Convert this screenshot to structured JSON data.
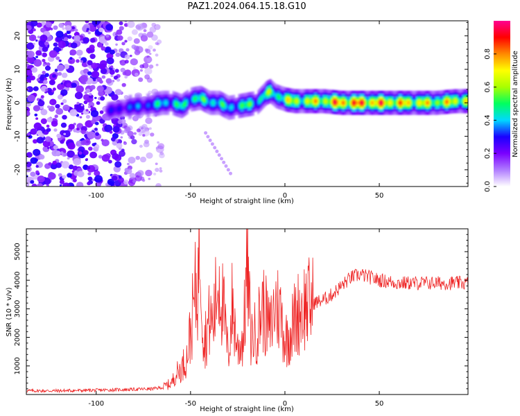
{
  "title": "PAZ1.2024.064.15.18.G10",
  "chart_data": [
    {
      "type": "heatmap",
      "xlabel": "Height of straight line (km)",
      "ylabel": "Frequency (Hz)",
      "xlim": [
        -137,
        97
      ],
      "ylim": [
        -25,
        24.5
      ],
      "xticks": [
        -100,
        -50,
        0,
        50
      ],
      "yticks": [
        -20,
        -10,
        0,
        10,
        20
      ],
      "colorbar": {
        "label": "Normalized spectral amplitude",
        "range": [
          0,
          1
        ],
        "ticks": [
          "0.0",
          "0.2",
          "0.4",
          "0.6",
          "0.8"
        ],
        "colors": [
          "#ffffff",
          "#b07cff",
          "#7a00ff",
          "#1a00ff",
          "#00d8ff",
          "#00ff60",
          "#a8ff00",
          "#ffff00",
          "#ff8a00",
          "#ff0000",
          "#ff0090"
        ]
      },
      "ridge": {
        "x": [
          -95,
          -90,
          -85,
          -80,
          -75,
          -70,
          -65,
          -60,
          -55,
          -50,
          -45,
          -40,
          -35,
          -30,
          -25,
          -20,
          -15,
          -10,
          -8,
          -5,
          0,
          5,
          10,
          20,
          30,
          40,
          50,
          60,
          70,
          80,
          90,
          97
        ],
        "y": [
          -2.5,
          -2,
          -1.5,
          -1,
          -1,
          -0.5,
          0,
          0,
          -1,
          1,
          1.5,
          0,
          0,
          -1.5,
          -1,
          -0.5,
          0,
          3,
          3.5,
          2,
          1,
          0.5,
          0.5,
          0.5,
          0,
          0,
          0,
          0,
          0,
          0,
          0.5,
          0.5
        ],
        "amplitude": [
          0.25,
          0.3,
          0.35,
          0.35,
          0.4,
          0.4,
          0.5,
          0.45,
          0.5,
          0.55,
          0.5,
          0.55,
          0.5,
          0.45,
          0.5,
          0.55,
          0.5,
          0.6,
          0.55,
          0.55,
          0.7,
          0.65,
          0.7,
          0.75,
          0.9,
          0.9,
          0.85,
          0.8,
          0.75,
          0.7,
          0.75,
          0.7
        ]
      },
      "noise_region": {
        "x": [
          -137,
          -65
        ],
        "amplitude": [
          0.05,
          0.3
        ]
      },
      "grid": false
    },
    {
      "type": "line",
      "xlabel": "Height of straight line (km)",
      "ylabel": "SNR (10 * v/v)",
      "xlim": [
        -137,
        97
      ],
      "ylim": [
        0,
        5800
      ],
      "xticks": [
        -100,
        -50,
        0,
        50
      ],
      "yticks": [
        1000,
        2000,
        3000,
        4000,
        5000
      ],
      "series": [
        {
          "color": "#ee2222",
          "x": [
            -137,
            -120,
            -100,
            -80,
            -70,
            -65,
            -60,
            -58,
            -55,
            -52,
            -50,
            -48,
            -46,
            -45,
            -43,
            -40,
            -38,
            -35,
            -32,
            -30,
            -28,
            -25,
            -22,
            -20,
            -18,
            -15,
            -12,
            -10,
            -8,
            -5,
            -2,
            0,
            3,
            5,
            8,
            10,
            15,
            20,
            25,
            30,
            35,
            40,
            45,
            50,
            60,
            70,
            80,
            90,
            97
          ],
          "y": [
            130,
            130,
            150,
            180,
            200,
            250,
            400,
            700,
            900,
            1300,
            2200,
            3300,
            4000,
            5800,
            1800,
            2600,
            2500,
            4200,
            2600,
            1300,
            3100,
            1600,
            2000,
            4500,
            2000,
            2200,
            3100,
            2700,
            2200,
            3200,
            2800,
            1900,
            2200,
            2600,
            3000,
            3100,
            3200,
            3300,
            3500,
            3800,
            4100,
            4200,
            4100,
            4000,
            3900,
            3900,
            3900,
            3900,
            3900
          ]
        }
      ]
    }
  ]
}
